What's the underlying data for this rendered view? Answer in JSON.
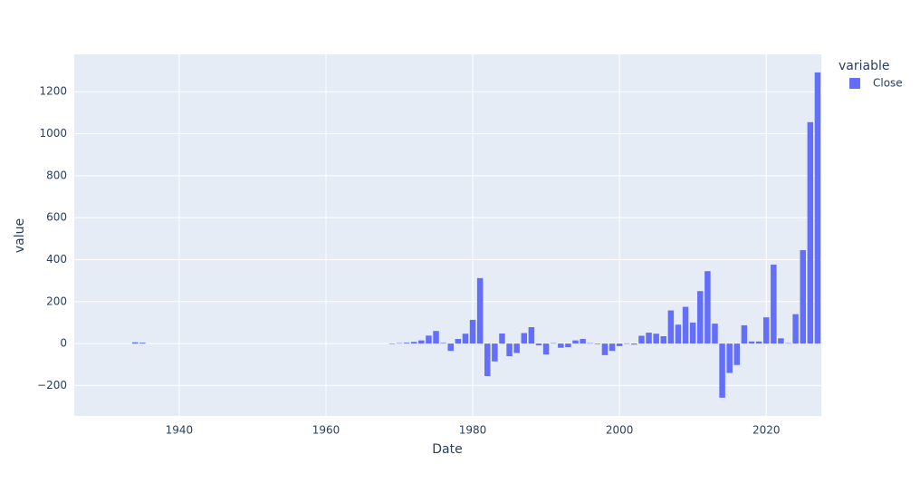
{
  "chart_data": {
    "type": "bar",
    "x_label": "Date",
    "y_label": "value",
    "legend_title": "variable",
    "legend": "top-right",
    "x": [
      1934,
      1935,
      1969,
      1970,
      1971,
      1972,
      1973,
      1974,
      1975,
      1976,
      1977,
      1978,
      1979,
      1980,
      1981,
      1982,
      1983,
      1984,
      1985,
      1986,
      1987,
      1988,
      1989,
      1990,
      1991,
      1992,
      1993,
      1994,
      1995,
      1996,
      1997,
      1998,
      1999,
      2000,
      2001,
      2002,
      2003,
      2004,
      2005,
      2006,
      2007,
      2008,
      2009,
      2010,
      2011,
      2012,
      2013,
      2014,
      2015,
      2016,
      2017,
      2018,
      2019,
      2020,
      2021,
      2022,
      2023,
      2024,
      2025,
      2026,
      2027
    ],
    "series": [
      {
        "name": "Close",
        "color": "#636efa",
        "values": [
          6,
          4,
          -2,
          2,
          4,
          8,
          15,
          38,
          60,
          3,
          -35,
          22,
          47,
          113,
          312,
          -155,
          -85,
          48,
          -60,
          -45,
          50,
          78,
          -8,
          -52,
          2,
          -20,
          -17,
          15,
          22,
          2,
          -3,
          -55,
          -35,
          -12,
          1,
          -5,
          37,
          52,
          47,
          35,
          158,
          90,
          175,
          100,
          250,
          345,
          95,
          -258,
          -140,
          -102,
          87,
          10,
          10,
          125,
          376,
          25,
          2,
          140,
          445,
          1055,
          1292
        ]
      }
    ],
    "xlim": [
      1925.7,
      2027.5
    ],
    "xticks": [
      1940,
      1960,
      1980,
      2000,
      2020
    ],
    "ylim": [
      -345,
      1378
    ],
    "yticks": [
      {
        "value": -200,
        "label": "−200"
      },
      0,
      200,
      400,
      600,
      800,
      1000,
      1200
    ],
    "grid": true
  }
}
